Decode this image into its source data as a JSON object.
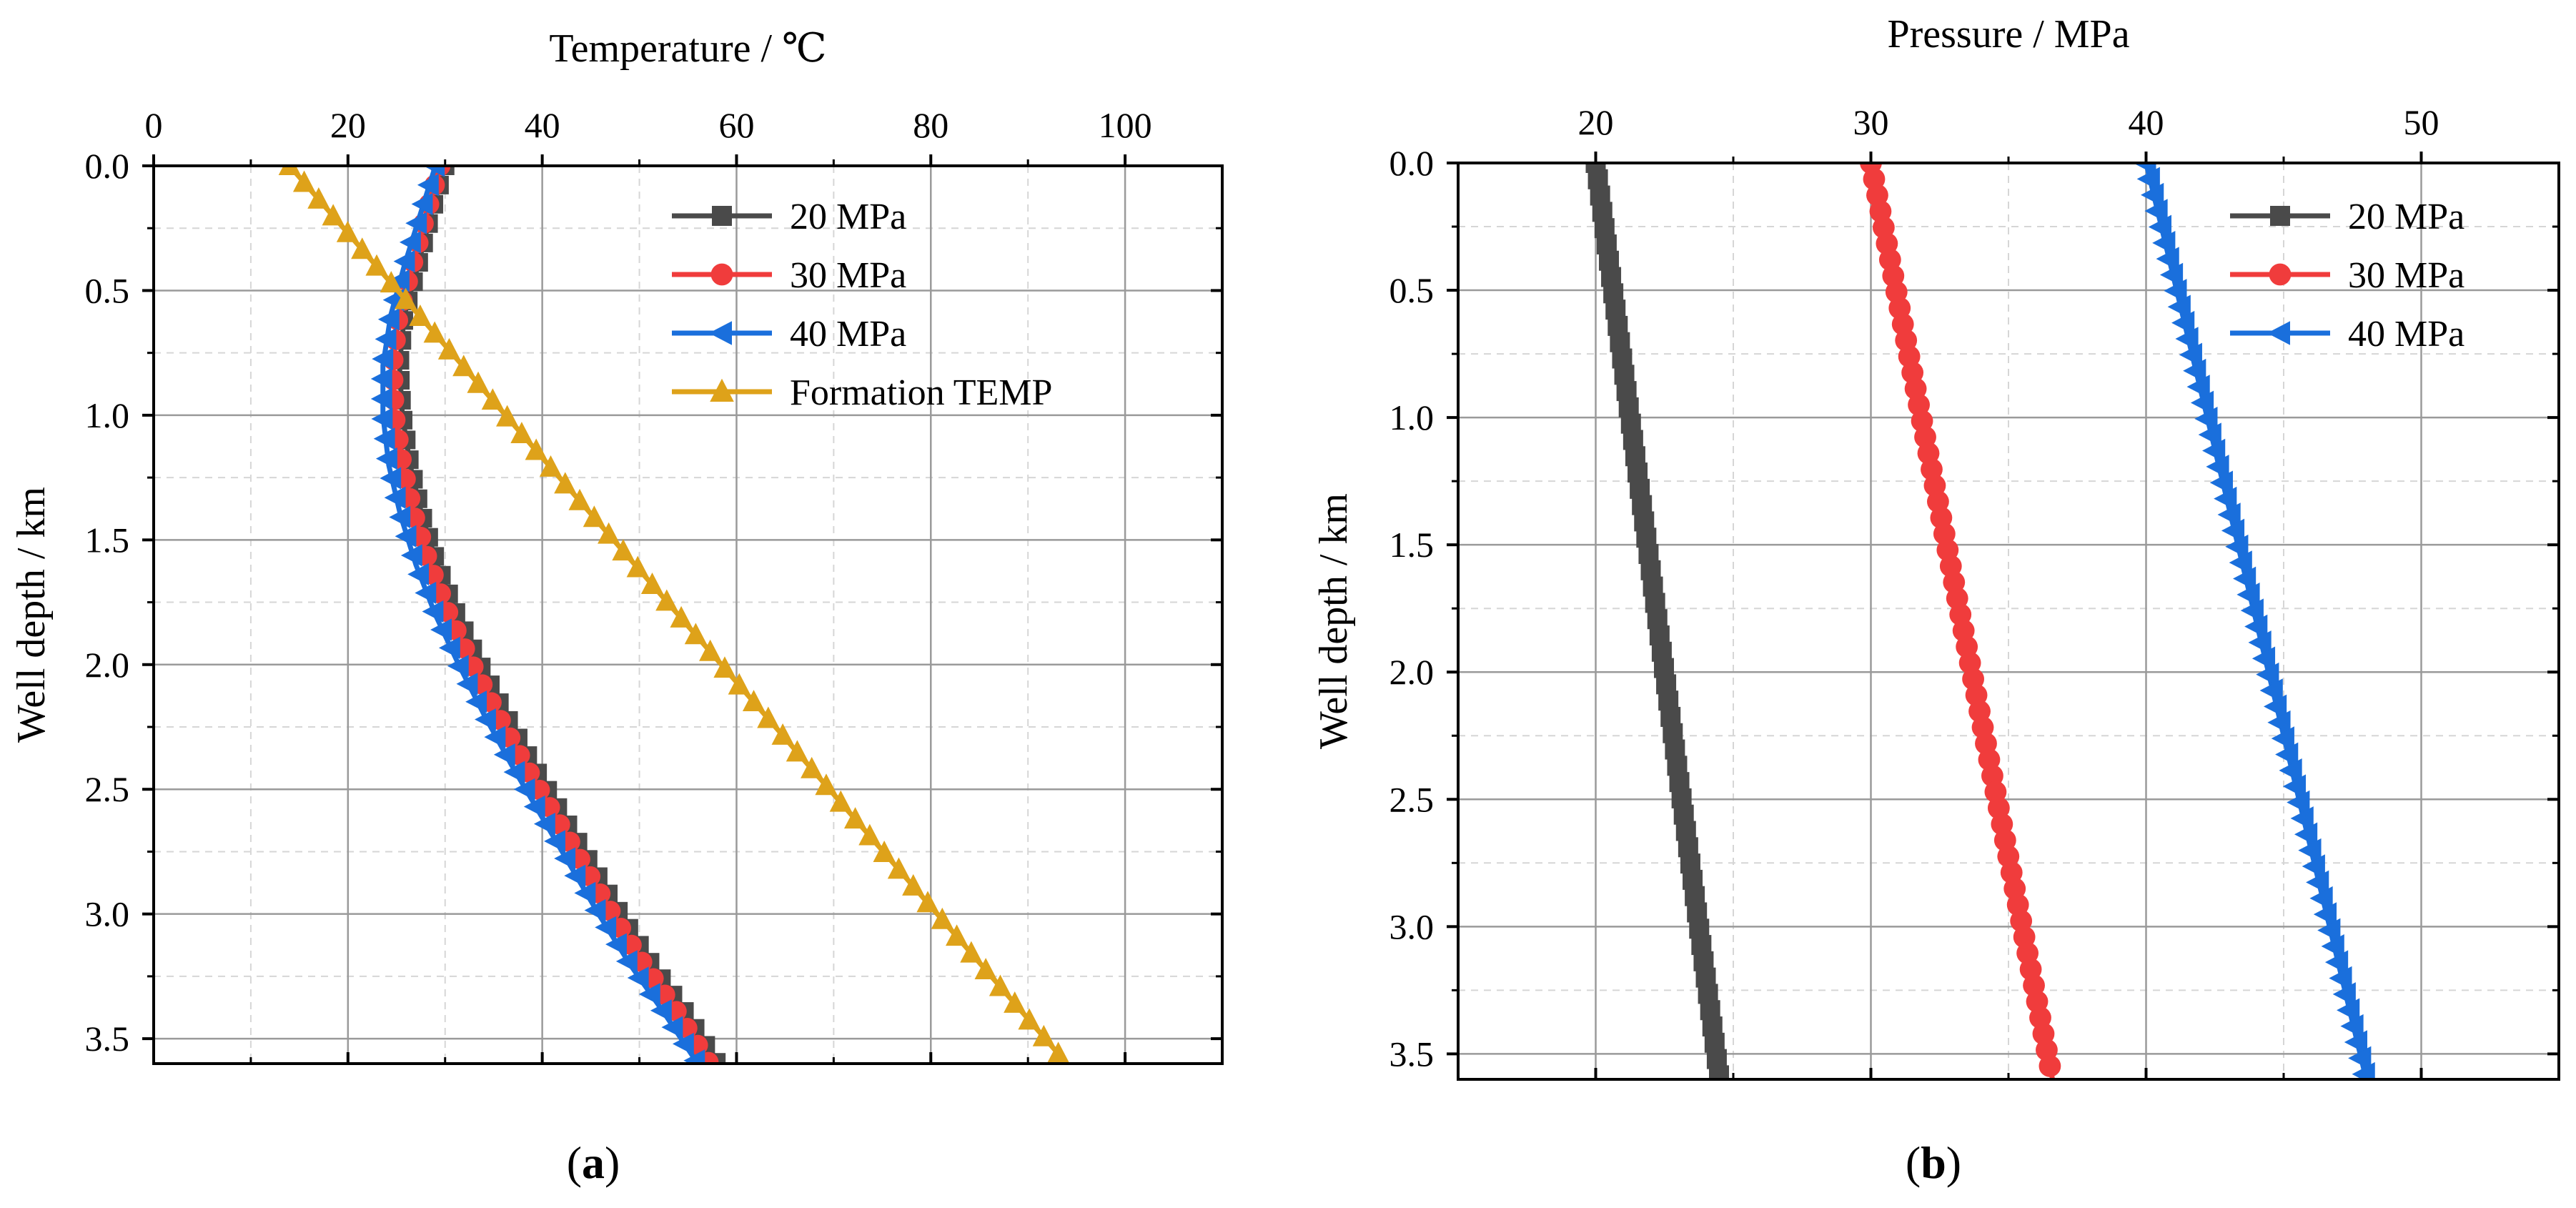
{
  "chart_data": [
    {
      "id": "a",
      "type": "line",
      "caption": "a",
      "xlabel": "Temperature / ℃",
      "ylabel": "Well depth / km",
      "xaxis_position": "top",
      "yaxis_inverted": true,
      "xlim": [
        0,
        110
      ],
      "ylim": [
        0,
        3.6
      ],
      "xticks": [
        0,
        20,
        40,
        60,
        80,
        100
      ],
      "yticks": [
        0.0,
        0.5,
        1.0,
        1.5,
        2.0,
        2.5,
        3.0,
        3.5
      ],
      "grid": true,
      "legend_position": "top-right",
      "series": [
        {
          "name": "20 MPa",
          "color": "#4a4a4a",
          "marker": "square",
          "points": [
            [
              30.0,
              0.0
            ],
            [
              28.5,
              0.2
            ],
            [
              27.2,
              0.4
            ],
            [
              25.8,
              0.6
            ],
            [
              25.3,
              0.8
            ],
            [
              25.6,
              1.0
            ],
            [
              26.4,
              1.2
            ],
            [
              27.6,
              1.4
            ],
            [
              29.2,
              1.6
            ],
            [
              31.2,
              1.8
            ],
            [
              33.6,
              2.0
            ],
            [
              36.2,
              2.2
            ],
            [
              39.0,
              2.4
            ],
            [
              42.0,
              2.6
            ],
            [
              45.0,
              2.8
            ],
            [
              48.0,
              3.0
            ],
            [
              51.2,
              3.2
            ],
            [
              54.8,
              3.4
            ],
            [
              58.0,
              3.6
            ]
          ]
        },
        {
          "name": "30 MPa",
          "color": "#f03c3c",
          "marker": "circle",
          "points": [
            [
              29.5,
              0.0
            ],
            [
              28.0,
              0.2
            ],
            [
              26.6,
              0.4
            ],
            [
              25.2,
              0.6
            ],
            [
              24.6,
              0.8
            ],
            [
              24.8,
              1.0
            ],
            [
              25.6,
              1.2
            ],
            [
              26.8,
              1.4
            ],
            [
              28.4,
              1.6
            ],
            [
              30.4,
              1.8
            ],
            [
              32.8,
              2.0
            ],
            [
              35.4,
              2.2
            ],
            [
              38.2,
              2.4
            ],
            [
              41.2,
              2.6
            ],
            [
              44.2,
              2.8
            ],
            [
              47.2,
              3.0
            ],
            [
              50.4,
              3.2
            ],
            [
              54.0,
              3.4
            ],
            [
              57.2,
              3.6
            ]
          ]
        },
        {
          "name": "40 MPa",
          "color": "#1a6fdc",
          "marker": "triangle-left",
          "points": [
            [
              29.0,
              0.0
            ],
            [
              27.4,
              0.2
            ],
            [
              25.8,
              0.4
            ],
            [
              24.4,
              0.6
            ],
            [
              23.6,
              0.8
            ],
            [
              23.6,
              1.0
            ],
            [
              24.2,
              1.2
            ],
            [
              25.4,
              1.4
            ],
            [
              27.0,
              1.6
            ],
            [
              29.0,
              1.8
            ],
            [
              31.4,
              2.0
            ],
            [
              34.0,
              2.2
            ],
            [
              36.8,
              2.4
            ],
            [
              39.8,
              2.6
            ],
            [
              42.8,
              2.8
            ],
            [
              45.8,
              3.0
            ],
            [
              49.0,
              3.2
            ],
            [
              52.6,
              3.4
            ],
            [
              56.0,
              3.6
            ]
          ]
        },
        {
          "name": "Formation TEMP",
          "color": "#dea21a",
          "marker": "triangle-up",
          "points": [
            [
              14.0,
              0.0
            ],
            [
              94.0,
              3.6
            ]
          ]
        }
      ]
    },
    {
      "id": "b",
      "type": "line",
      "caption": "b",
      "xlabel": "Pressure / MPa",
      "ylabel": "Well depth / km",
      "xaxis_position": "top",
      "yaxis_inverted": true,
      "xlim": [
        15,
        55
      ],
      "ylim": [
        0,
        3.6
      ],
      "xticks": [
        20,
        30,
        40,
        50
      ],
      "yticks": [
        0.0,
        0.5,
        1.0,
        1.5,
        2.0,
        2.5,
        3.0,
        3.5
      ],
      "grid": true,
      "legend_position": "top-right",
      "series": [
        {
          "name": "20 MPa",
          "color": "#4a4a4a",
          "marker": "square",
          "points": [
            [
              20.0,
              0.0
            ],
            [
              24.5,
              3.6
            ]
          ]
        },
        {
          "name": "30 MPa",
          "color": "#f03c3c",
          "marker": "circle",
          "points": [
            [
              30.0,
              0.0
            ],
            [
              36.6,
              3.6
            ]
          ]
        },
        {
          "name": "40 MPa",
          "color": "#1a6fdc",
          "marker": "triangle-left",
          "points": [
            [
              40.0,
              0.0
            ],
            [
              48.0,
              3.6
            ]
          ]
        }
      ]
    }
  ]
}
